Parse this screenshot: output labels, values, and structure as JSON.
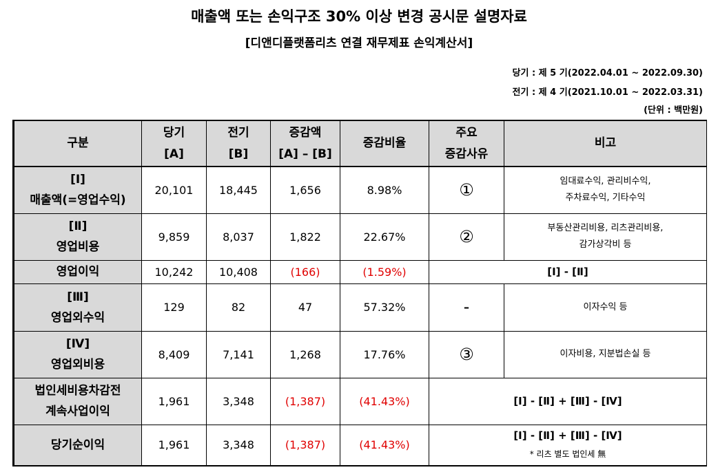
{
  "title": "매출액 또는 손익구조 30% 이상 변경 공시문 설명자료",
  "subtitle": "[디앤디플랫폼리츠 연결 재무제표 손익계산서]",
  "period_current": "당기 : 제 5 기(2022.04.01 ~ 2022.09.30)",
  "period_prior": "전기 : 제 4 기(2021.10.01 ~ 2022.03.31)",
  "unit": "(단위 : 백만원)",
  "headers": {
    "category": "구분",
    "current_1": "당기",
    "current_2": "[A]",
    "prior_1": "전기",
    "prior_2": "[B]",
    "change_1": "증감액",
    "change_2": "[A] – [B]",
    "rate": "증감비율",
    "reason_1": "주요",
    "reason_2": "증감사유",
    "remarks": "비고"
  },
  "rows": [
    {
      "label_1": "[Ⅰ]",
      "label_2": "매출액(=영업수익)",
      "current": "20,101",
      "prior": "18,445",
      "change": "1,656",
      "rate": "8.98%",
      "reason": "①",
      "remark_1": "임대료수익, 관리비수익,",
      "remark_2": "주차료수익, 기타수익"
    },
    {
      "label_1": "[Ⅱ]",
      "label_2": "영업비용",
      "current": "9,859",
      "prior": "8,037",
      "change": "1,822",
      "rate": "22.67%",
      "reason": "②",
      "remark_1": "부동산관리비용, 리츠관리비용,",
      "remark_2": "감가상각비 등"
    },
    {
      "label_1": "영업이익",
      "current": "10,242",
      "prior": "10,408",
      "change": "(166)",
      "rate": "(1.59%)",
      "formula": "[Ⅰ] - [Ⅱ]"
    },
    {
      "label_1": "[Ⅲ]",
      "label_2": "영업외수익",
      "current": "129",
      "prior": "82",
      "change": "47",
      "rate": "57.32%",
      "reason": "–",
      "remark_1": "이자수익 등"
    },
    {
      "label_1": "[Ⅳ]",
      "label_2": "영업외비용",
      "current": "8,409",
      "prior": "7,141",
      "change": "1,268",
      "rate": "17.76%",
      "reason": "③",
      "remark_1": "이자비용, 지분법손실 등"
    },
    {
      "label_1": "법인세비용차감전",
      "label_2": "계속사업이익",
      "current": "1,961",
      "prior": "3,348",
      "change": "(1,387)",
      "rate": "(41.43%)",
      "formula": "[Ⅰ] - [Ⅱ] + [Ⅲ] - [Ⅳ]"
    },
    {
      "label_1": "당기순이익",
      "current": "1,961",
      "prior": "3,348",
      "change": "(1,387)",
      "rate": "(41.43%)",
      "formula": "[Ⅰ] - [Ⅱ] + [Ⅲ] - [Ⅳ]",
      "note": "* 리츠 별도 법인세 無"
    }
  ],
  "colors": {
    "header_bg": "#d9d9d9",
    "negative": "#e00000"
  }
}
